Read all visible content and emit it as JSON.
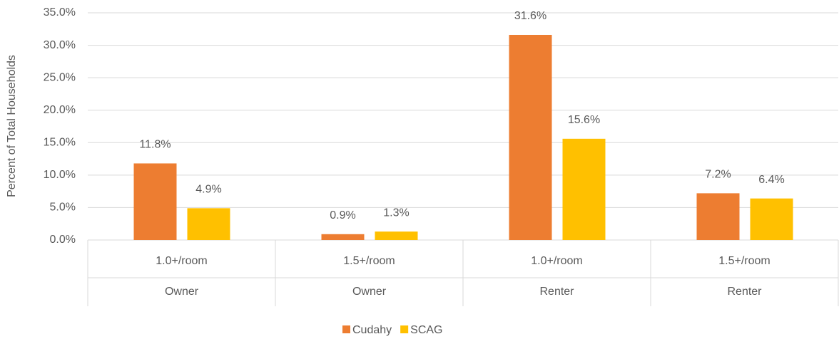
{
  "chart_data": {
    "type": "bar",
    "y_label": "Percent of Total Households",
    "categories": [
      "1.0+/room",
      "1.5+/room",
      "1.0+/room",
      "1.5+/room"
    ],
    "groups": [
      "Owner",
      "Owner",
      "Renter",
      "Renter"
    ],
    "series": [
      {
        "name": "Cudahy",
        "color": "#ED7D31",
        "values": [
          11.8,
          0.9,
          31.6,
          7.2
        ],
        "value_labels": [
          "11.8%",
          "0.9%",
          "31.6%",
          "7.2%"
        ]
      },
      {
        "name": "SCAG",
        "color": "#FFC000",
        "values": [
          4.9,
          1.3,
          15.6,
          6.4
        ],
        "value_labels": [
          "4.9%",
          "1.3%",
          "15.6%",
          "6.4%"
        ]
      }
    ],
    "ylim": [
      0,
      35
    ],
    "yticks": [
      {
        "value": 0,
        "label": "0.0%"
      },
      {
        "value": 5,
        "label": "5.0%"
      },
      {
        "value": 10,
        "label": "10.0%"
      },
      {
        "value": 15,
        "label": "15.0%"
      },
      {
        "value": 20,
        "label": "20.0%"
      },
      {
        "value": 25,
        "label": "25.0%"
      },
      {
        "value": 30,
        "label": "30.0%"
      },
      {
        "value": 35,
        "label": "35.0%"
      }
    ],
    "grid": true,
    "legend": "bottom"
  }
}
